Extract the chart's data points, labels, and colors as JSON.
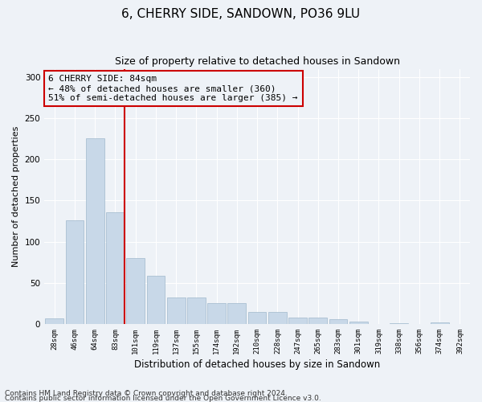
{
  "title": "6, CHERRY SIDE, SANDOWN, PO36 9LU",
  "subtitle": "Size of property relative to detached houses in Sandown",
  "xlabel": "Distribution of detached houses by size in Sandown",
  "ylabel": "Number of detached properties",
  "bar_color": "#c8d8e8",
  "bar_edge_color": "#a0b8cc",
  "vline_color": "#cc0000",
  "vline_x_index": 3,
  "categories": [
    "28sqm",
    "46sqm",
    "64sqm",
    "83sqm",
    "101sqm",
    "119sqm",
    "137sqm",
    "155sqm",
    "174sqm",
    "192sqm",
    "210sqm",
    "228sqm",
    "247sqm",
    "265sqm",
    "283sqm",
    "301sqm",
    "319sqm",
    "338sqm",
    "356sqm",
    "374sqm",
    "392sqm"
  ],
  "values": [
    7,
    126,
    226,
    136,
    80,
    59,
    32,
    32,
    25,
    25,
    15,
    15,
    8,
    8,
    6,
    3,
    0,
    1,
    0,
    2,
    0
  ],
  "ylim": [
    0,
    310
  ],
  "yticks": [
    0,
    50,
    100,
    150,
    200,
    250,
    300
  ],
  "annotation_text": "6 CHERRY SIDE: 84sqm\n← 48% of detached houses are smaller (360)\n51% of semi-detached houses are larger (385) →",
  "footnote1": "Contains HM Land Registry data © Crown copyright and database right 2024.",
  "footnote2": "Contains public sector information licensed under the Open Government Licence v3.0.",
  "background_color": "#eef2f7",
  "grid_color": "#ffffff",
  "title_fontsize": 11,
  "subtitle_fontsize": 9,
  "annotation_fontsize": 8,
  "footnote_fontsize": 6.5,
  "ylabel_fontsize": 8,
  "xlabel_fontsize": 8.5
}
